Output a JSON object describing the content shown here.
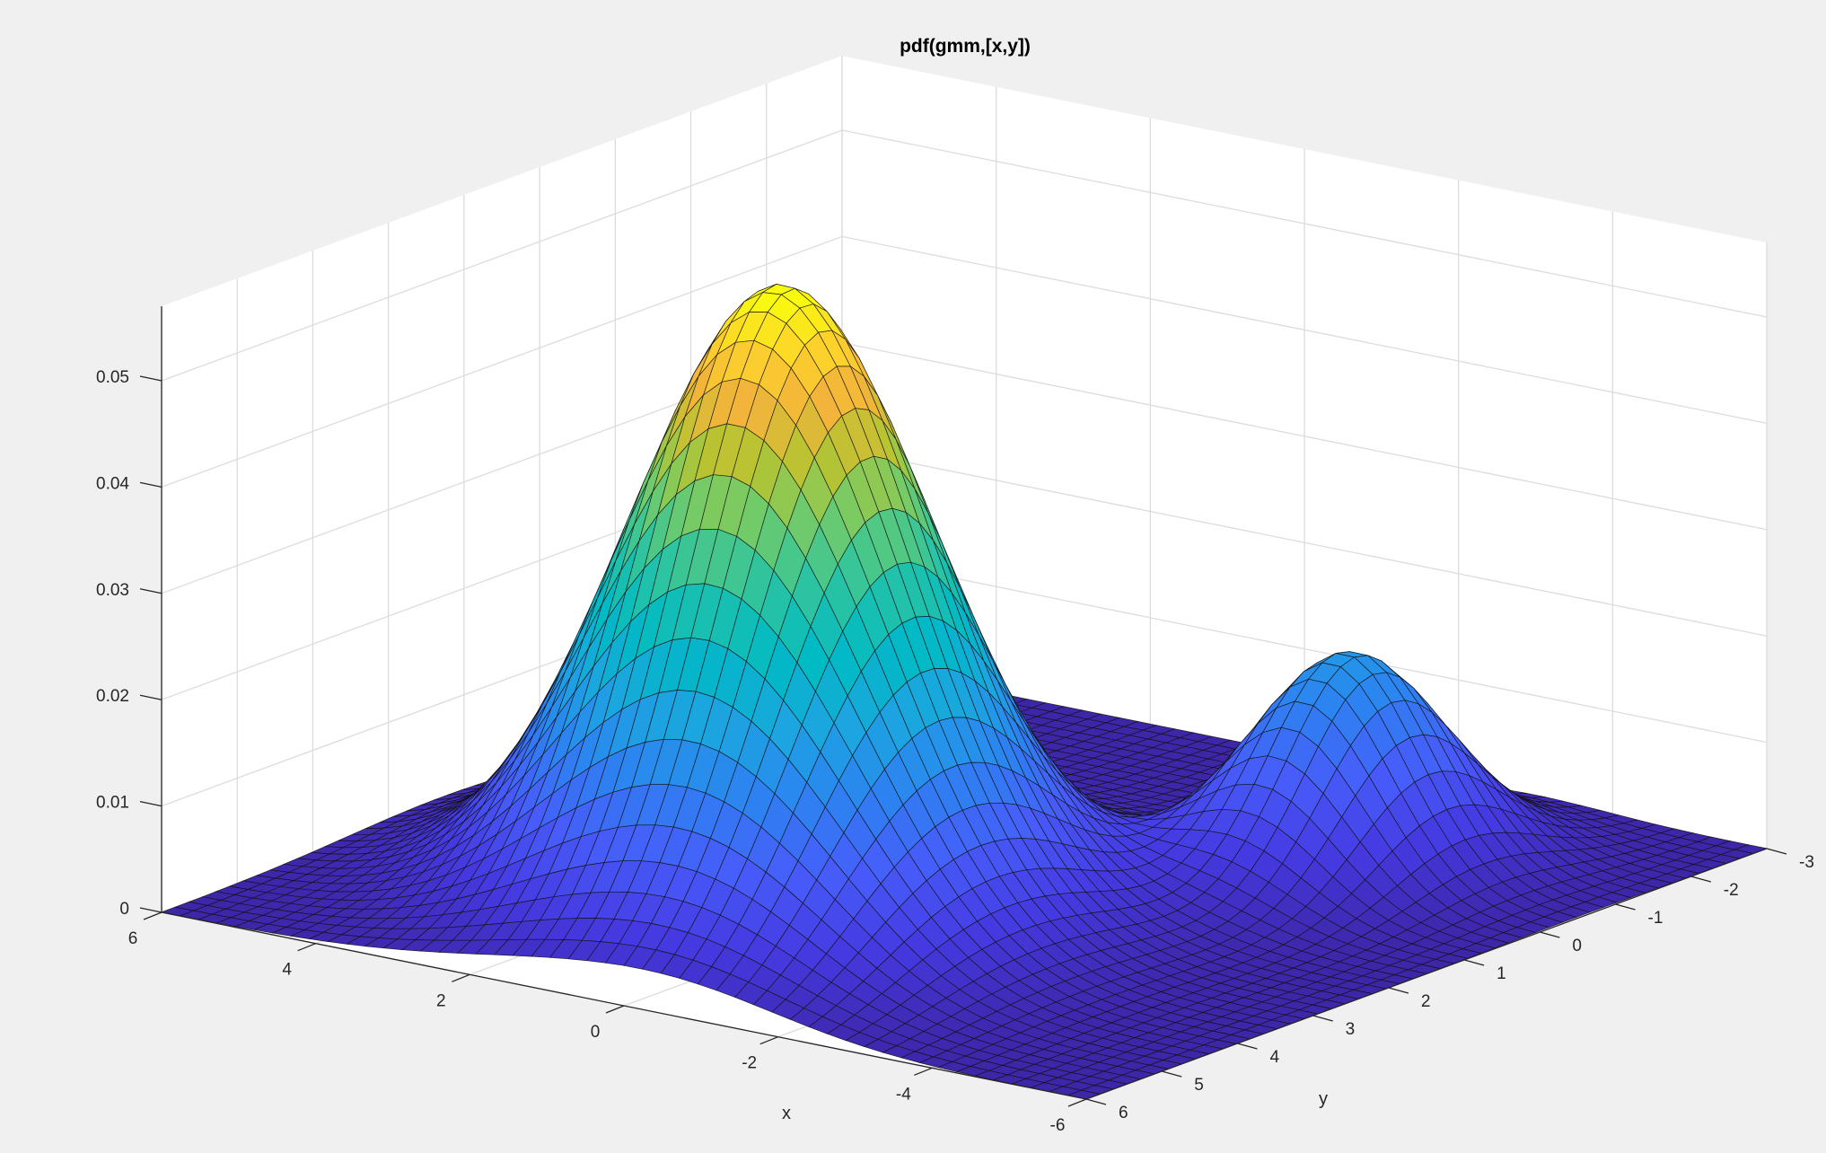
{
  "chart_data": {
    "type": "surface",
    "title": "pdf(gmm,[x,y])",
    "xlabel": "x",
    "ylabel": "y",
    "zlabel": "",
    "xlim": [
      -6,
      6
    ],
    "ylim": [
      -3,
      6
    ],
    "zlim": [
      0,
      0.057
    ],
    "x_ticks": [
      6,
      4,
      2,
      0,
      -2,
      -4,
      -6
    ],
    "y_ticks": [
      -3,
      -2,
      -1,
      0,
      1,
      2,
      3,
      4,
      5,
      6
    ],
    "z_ticks": [
      0,
      0.01,
      0.02,
      0.03,
      0.04,
      0.05
    ],
    "x_tick_labels": [
      "6",
      "4",
      "2",
      "0",
      "-2",
      "-4",
      "-6"
    ],
    "y_tick_labels": [
      "-3",
      "-2",
      "-1",
      "0",
      "1",
      "2",
      "3",
      "4",
      "5",
      "6"
    ],
    "z_tick_labels": [
      "0",
      "0.01",
      "0.02",
      "0.03",
      "0.04",
      "0.05"
    ],
    "grid": true,
    "colormap": "parula",
    "surface": {
      "function": "weighted sum of two bivariate Gaussians",
      "grid_x": [
        -6,
        6
      ],
      "grid_y": [
        -3,
        6
      ],
      "grid_n": 50,
      "peaks": [
        {
          "x": 1.1,
          "y": 2.8,
          "z": 0.0575
        },
        {
          "x": -3.0,
          "y": -0.5,
          "z": 0.021
        }
      ]
    }
  }
}
